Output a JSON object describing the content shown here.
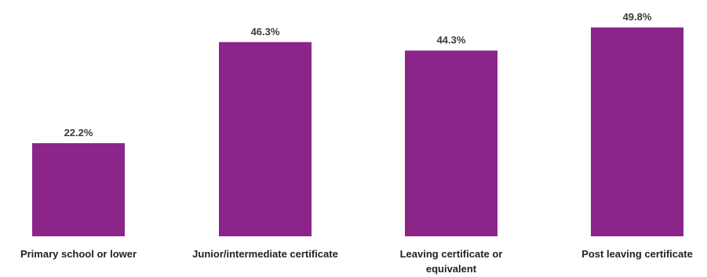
{
  "chart_data": {
    "type": "bar",
    "categories": [
      [
        "Primary school or lower"
      ],
      [
        "Junior/intermediate certificate"
      ],
      [
        "Leaving certificate or",
        "equivalent"
      ],
      [
        "Post leaving certificate"
      ]
    ],
    "values": [
      22.2,
      46.3,
      44.3,
      49.8
    ],
    "value_labels": [
      "22.2%",
      "46.3%",
      "44.3%",
      "49.8%"
    ],
    "title": "",
    "xlabel": "",
    "ylabel": "",
    "ylim": [
      0,
      50
    ],
    "grid": false,
    "legend": "none",
    "bar_color": "#8b2589"
  }
}
